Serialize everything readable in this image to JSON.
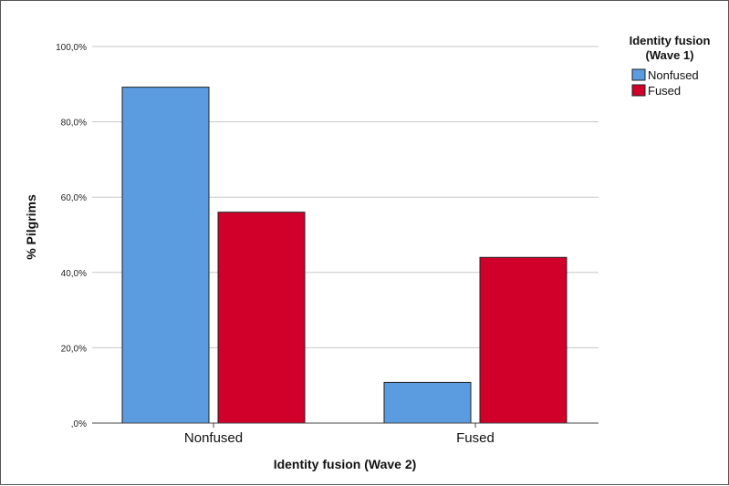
{
  "chart_data": {
    "type": "bar",
    "categories": [
      "Nonfused",
      "Fused"
    ],
    "series": [
      {
        "name": "Nonfused",
        "values": [
          89.2,
          10.8
        ],
        "color": "#5B9BE0"
      },
      {
        "name": "Fused",
        "values": [
          56.0,
          44.0
        ],
        "color": "#D0002A"
      }
    ],
    "xlabel": "Identity fusion (Wave 2)",
    "ylabel": "% Pilgrims",
    "ylim": [
      0,
      100
    ],
    "yticks": [
      0,
      20,
      40,
      60,
      80,
      100
    ],
    "ytick_labels": [
      ",0%",
      "20,0%",
      "40,0%",
      "60,0%",
      "80,0%",
      "100,0%"
    ],
    "legend": {
      "title_lines": [
        "Identity fusion",
        "(Wave 1)"
      ],
      "position": "top-right"
    },
    "grid": true
  }
}
